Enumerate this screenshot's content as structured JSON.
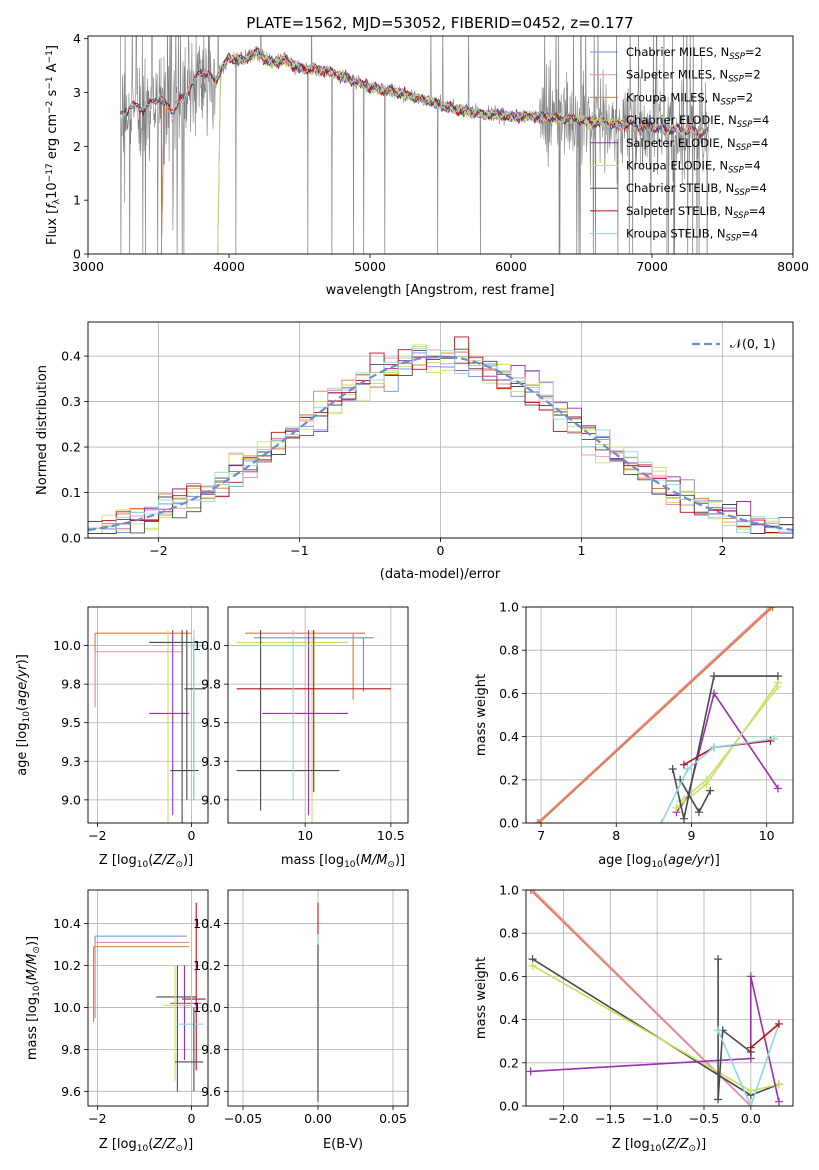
{
  "title": "PLATE=1562, MJD=53052, FIBERID=0452, z=0.177",
  "colors": {
    "chabrier_miles": "#6f8fe0",
    "salpeter_miles": "#e88fb0",
    "kroupa_miles": "#e07b2e",
    "chabrier_elodie": "#c8e05a",
    "salpeter_elodie": "#9b2fae",
    "kroupa_elodie": "#c3e37a",
    "chabrier_stelib": "#4a4a4a",
    "salpeter_stelib": "#b5121b",
    "kroupa_stelib": "#8fd9e0",
    "data": "#7f7f7f",
    "gaussian": "#6a8fd0"
  },
  "legend_spectrum": [
    {
      "text": "Chabrier MILES, N",
      "sub": "SSP",
      "tail": "=2",
      "color": "#6f8fe0"
    },
    {
      "text": "Salpeter MILES, N",
      "sub": "SSP",
      "tail": "=2",
      "color": "#e88fb0"
    },
    {
      "text": "Kroupa MILES, N",
      "sub": "SSP",
      "tail": "=2",
      "color": "#e07b2e"
    },
    {
      "text": "Chabrier ELODIE, N",
      "sub": "SSP",
      "tail": "=4",
      "color": "#c8e05a"
    },
    {
      "text": "Salpeter ELODIE, N",
      "sub": "SSP",
      "tail": "=4",
      "color": "#9b2fae"
    },
    {
      "text": "Kroupa ELODIE, N",
      "sub": "SSP",
      "tail": "=4",
      "color": "#c3e37a"
    },
    {
      "text": "Chabrier STELIB, N",
      "sub": "SSP",
      "tail": "=4",
      "color": "#4a4a4a"
    },
    {
      "text": "Salpeter STELIB, N",
      "sub": "SSP",
      "tail": "=4",
      "color": "#b5121b"
    },
    {
      "text": "Kroupa STELIB, N",
      "sub": "SSP",
      "tail": "=4",
      "color": "#8fd9e0"
    }
  ],
  "legend_hist": {
    "label": "𝒩(0, 1)"
  },
  "chart_data": [
    {
      "id": "spectrum",
      "type": "line",
      "title": "PLATE=1562, MJD=53052, FIBERID=0452, z=0.177",
      "xlabel": "wavelength [Angstrom, rest frame]",
      "ylabel_parts": [
        "Flux [",
        "f",
        "λ",
        "10",
        "−17",
        " erg cm",
        "−2",
        " s",
        "−1",
        " A",
        "−1",
        "]"
      ],
      "xlim": [
        3000,
        8000
      ],
      "ylim": [
        0,
        4.05
      ],
      "xticks": [
        3000,
        4000,
        5000,
        6000,
        7000,
        8000
      ],
      "yticks": [
        0,
        1,
        2,
        3,
        4
      ],
      "grid": false,
      "legend_position": "upper-right",
      "model_continuum": {
        "x": [
          3230,
          3300,
          3400,
          3500,
          3600,
          3700,
          3800,
          3900,
          3950,
          4000,
          4100,
          4200,
          4300,
          4400,
          4500,
          4700,
          4800,
          5000,
          5200,
          5400,
          5600,
          5800,
          6000,
          6200,
          6400,
          6600,
          6800,
          7000,
          7200,
          7400
        ],
        "y": [
          2.55,
          2.75,
          2.7,
          2.9,
          2.65,
          3.0,
          3.4,
          3.2,
          3.45,
          3.65,
          3.6,
          3.75,
          3.55,
          3.6,
          3.45,
          3.4,
          3.3,
          3.1,
          3.0,
          2.85,
          2.7,
          2.6,
          2.55,
          2.55,
          2.5,
          2.45,
          2.4,
          2.35,
          2.3,
          2.25
        ]
      },
      "data_range": [
        3230,
        7520
      ]
    },
    {
      "id": "residual_hist",
      "type": "step_histogram",
      "xlabel": "(data-model)/error",
      "ylabel": "Normed distribution",
      "xlim": [
        -2.5,
        2.5
      ],
      "ylim": [
        0,
        0.475
      ],
      "xticks": [
        -2,
        -1,
        0,
        1,
        2
      ],
      "yticks": [
        0.0,
        0.1,
        0.2,
        0.3,
        0.4
      ],
      "grid": true,
      "legend_position": "upper-right",
      "gaussian": {
        "mean": 0,
        "sigma": 1,
        "style": "dashed"
      }
    },
    {
      "id": "age_vs_Z",
      "type": "errorbar",
      "xlabel_parts": [
        "Z [log",
        "10",
        "(",
        "Z/Z",
        "⊙",
        ")]"
      ],
      "ylabel_parts": [
        "age  [log",
        "10",
        "(",
        "age/yr",
        ")]"
      ],
      "xlim": [
        -2.2,
        0.35
      ],
      "ylim": [
        8.85,
        10.25
      ],
      "xticks": [
        -2,
        0
      ],
      "yticks": [
        9.0,
        9.25,
        9.5,
        9.75,
        10.0
      ],
      "grid": true,
      "points": [
        {
          "m": "kroupa_miles",
          "x": -2.05,
          "y": 10.08,
          "xlo": -2.05,
          "xhi": 0.0,
          "ylo": 9.6,
          "yhi": 10.08
        },
        {
          "m": "salpeter_miles",
          "x": -2.05,
          "y": 9.96,
          "xlo": -2.05,
          "xhi": -0.2,
          "ylo": 9.6,
          "yhi": 9.97
        },
        {
          "m": "chabrier_elodie",
          "x": -0.5,
          "y": 10.02,
          "xlo": -0.8,
          "xhi": 0.1,
          "ylo": 8.85,
          "yhi": 10.1
        },
        {
          "m": "chabrier_stelib",
          "x": -0.1,
          "y": 10.02,
          "xlo": -0.9,
          "xhi": 0.25,
          "ylo": 9.0,
          "yhi": 10.1
        },
        {
          "m": "salpeter_elodie",
          "x": -0.4,
          "y": 9.56,
          "xlo": -0.9,
          "xhi": -0.05,
          "ylo": 8.9,
          "yhi": 10.1
        },
        {
          "m": "chabrier_stelib",
          "x": 0.05,
          "y": 9.72,
          "xlo": -0.15,
          "xhi": 0.3,
          "ylo": 9.0,
          "yhi": 10.05
        },
        {
          "m": "chabrier_stelib",
          "x": -0.2,
          "y": 9.19,
          "xlo": -0.45,
          "xhi": 0.15,
          "ylo": 8.85,
          "yhi": 10.1
        },
        {
          "m": "kroupa_stelib",
          "x": 0.05,
          "y": 10.0,
          "xlo": -0.1,
          "xhi": 0.25,
          "ylo": 9.0,
          "yhi": 10.1
        }
      ]
    },
    {
      "id": "age_vs_mass",
      "type": "errorbar",
      "xlabel_parts": [
        "mass [log",
        "10",
        "(",
        "M/M",
        "⊙",
        ")]"
      ],
      "ylabel_parts": [],
      "xlim": [
        9.55,
        10.6
      ],
      "ylim": [
        8.85,
        10.25
      ],
      "xticks": [
        10.0,
        10.5
      ],
      "yticks": [
        9.0,
        9.25,
        9.5,
        9.75,
        10.0
      ],
      "grid": true,
      "points": [
        {
          "m": "kroupa_miles",
          "x": 10.28,
          "y": 10.08,
          "xlo": 9.65,
          "xhi": 10.35,
          "ylo": 9.65,
          "yhi": 10.08
        },
        {
          "m": "chabrier_miles",
          "x": 10.34,
          "y": 10.05,
          "xlo": 9.7,
          "xhi": 10.4,
          "ylo": 9.7,
          "yhi": 10.05
        },
        {
          "m": "chabrier_elodie",
          "x": 10.04,
          "y": 10.02,
          "xlo": 9.6,
          "xhi": 10.25,
          "ylo": 8.85,
          "yhi": 10.1
        },
        {
          "m": "salpeter_elodie",
          "x": 10.02,
          "y": 9.56,
          "xlo": 9.75,
          "xhi": 10.25,
          "ylo": 8.9,
          "yhi": 10.1
        },
        {
          "m": "salpeter_stelib",
          "x": 10.05,
          "y": 9.72,
          "xlo": 9.6,
          "xhi": 10.5,
          "ylo": 9.05,
          "yhi": 10.1
        },
        {
          "m": "chabrier_stelib",
          "x": 9.74,
          "y": 9.19,
          "xlo": 9.6,
          "xhi": 10.2,
          "ylo": 8.93,
          "yhi": 10.1
        },
        {
          "m": "kroupa_stelib",
          "x": 9.93,
          "y": 10.0,
          "xlo": 9.6,
          "xhi": 10.05,
          "ylo": 9.0,
          "yhi": 10.1
        }
      ]
    },
    {
      "id": "weight_vs_age",
      "type": "line",
      "xlabel_parts": [
        "age  [log",
        "10",
        "(",
        "age/yr",
        ")]"
      ],
      "ylabel": "mass weight",
      "xlim": [
        6.8,
        10.35
      ],
      "ylim": [
        0,
        1.0
      ],
      "xticks": [
        7,
        8,
        9,
        10
      ],
      "yticks": [
        0.0,
        0.2,
        0.4,
        0.6,
        0.8,
        1.0
      ],
      "grid": true,
      "series": [
        {
          "m": "salpeter_miles",
          "x": [
            6.95,
            10.05
          ],
          "y": [
            0.0,
            1.0
          ]
        },
        {
          "m": "kroupa_miles",
          "x": [
            6.97,
            10.08
          ],
          "y": [
            0.0,
            1.0
          ]
        },
        {
          "m": "salpeter_elodie",
          "x": [
            8.8,
            8.95,
            9.3,
            10.15
          ],
          "y": [
            0.05,
            0.12,
            0.6,
            0.16
          ]
        },
        {
          "m": "chabrier_elodie",
          "x": [
            8.8,
            9.2,
            10.15
          ],
          "y": [
            0.07,
            0.18,
            0.65
          ]
        },
        {
          "m": "kroupa_elodie",
          "x": [
            8.85,
            9.2,
            10.15
          ],
          "y": [
            0.1,
            0.2,
            0.63
          ]
        },
        {
          "m": "chabrier_stelib",
          "x": [
            8.75,
            8.9,
            9.3,
            10.15
          ],
          "y": [
            0.25,
            0.02,
            0.68,
            0.68
          ]
        },
        {
          "m": "chabrier_stelib",
          "x": [
            8.85,
            9.1,
            9.25
          ],
          "y": [
            0.2,
            0.05,
            0.15
          ]
        },
        {
          "m": "salpeter_stelib",
          "x": [
            8.9,
            9.3,
            10.05
          ],
          "y": [
            0.27,
            0.35,
            0.38
          ]
        },
        {
          "m": "kroupa_stelib",
          "x": [
            8.6,
            8.95,
            9.3,
            10.1
          ],
          "y": [
            0.0,
            0.25,
            0.35,
            0.39
          ]
        }
      ]
    },
    {
      "id": "mass_vs_Z",
      "type": "errorbar",
      "xlabel_parts": [
        "Z [log",
        "10",
        "(",
        "Z/Z",
        "⊙",
        ")]"
      ],
      "ylabel_parts": [
        "mass [log",
        "10",
        "(",
        "M/M",
        "⊙",
        ")]"
      ],
      "xlim": [
        -2.2,
        0.35
      ],
      "ylim": [
        9.53,
        10.56
      ],
      "xticks": [
        -2,
        0
      ],
      "yticks": [
        9.6,
        9.8,
        10.0,
        10.2,
        10.4
      ],
      "grid": true,
      "points": [
        {
          "m": "chabrier_miles",
          "x": -2.05,
          "y": 10.34,
          "xlo": -2.05,
          "xhi": -0.1,
          "ylo": 9.95,
          "yhi": 10.34
        },
        {
          "m": "salpeter_miles",
          "x": -2.05,
          "y": 10.31,
          "xlo": -2.05,
          "xhi": -0.05,
          "ylo": 9.95,
          "yhi": 10.31
        },
        {
          "m": "kroupa_miles",
          "x": -2.08,
          "y": 10.29,
          "xlo": -2.08,
          "xhi": -0.05,
          "ylo": 9.93,
          "yhi": 10.29
        },
        {
          "m": "chabrier_stelib",
          "x": -0.3,
          "y": 10.05,
          "xlo": -0.75,
          "xhi": 0.1,
          "ylo": 9.6,
          "yhi": 10.2
        },
        {
          "m": "salpeter_stelib",
          "x": 0.1,
          "y": 10.04,
          "xlo": -0.2,
          "xhi": 0.3,
          "ylo": 9.7,
          "yhi": 10.5
        },
        {
          "m": "salpeter_elodie",
          "x": -0.15,
          "y": 10.02,
          "xlo": -0.45,
          "xhi": 0.2,
          "ylo": 9.75,
          "yhi": 10.2
        },
        {
          "m": "chabrier_elodie",
          "x": -0.35,
          "y": 10.01,
          "xlo": -0.6,
          "xhi": 0.0,
          "ylo": 9.65,
          "yhi": 10.2
        },
        {
          "m": "kroupa_stelib",
          "x": 0.0,
          "y": 9.92,
          "xlo": -0.3,
          "xhi": 0.25,
          "ylo": 9.7,
          "yhi": 10.1
        },
        {
          "m": "chabrier_stelib",
          "x": 0.05,
          "y": 9.74,
          "xlo": -0.35,
          "xhi": 0.25,
          "ylo": 9.6,
          "yhi": 10.0
        }
      ]
    },
    {
      "id": "mass_vs_ebv",
      "type": "errorbar",
      "xlabel": "E(B-V)",
      "ylabel_parts": [],
      "xlim": [
        -0.06,
        0.06
      ],
      "ylim": [
        9.53,
        10.56
      ],
      "xticks": [
        -0.05,
        0.0,
        0.05
      ],
      "xticklabels": [
        "−0.05",
        "0.00",
        "0.05"
      ],
      "yticks": [
        9.6,
        9.8,
        10.0,
        10.2,
        10.4
      ],
      "grid": true,
      "points": [
        {
          "m": "salpeter_stelib",
          "x": 0.0,
          "y": 10.04,
          "xlo": 0.0,
          "xhi": 0.0,
          "ylo": 9.6,
          "yhi": 10.5
        },
        {
          "m": "kroupa_stelib",
          "x": 0.0,
          "y": 10.0,
          "xlo": 0.0,
          "xhi": 0.0,
          "ylo": 9.7,
          "yhi": 10.35
        },
        {
          "m": "chabrier_stelib",
          "x": 0.0,
          "y": 9.9,
          "xlo": 0.0,
          "xhi": 0.0,
          "ylo": 9.55,
          "yhi": 10.3
        }
      ]
    },
    {
      "id": "weight_vs_Z",
      "type": "line",
      "xlabel_parts": [
        "Z [log",
        "10",
        "(",
        "Z/Z",
        "⊙",
        ")]"
      ],
      "ylabel": "mass weight",
      "xlim": [
        -2.4,
        0.45
      ],
      "ylim": [
        0,
        1.0
      ],
      "xticks": [
        -2.0,
        -1.5,
        -1.0,
        -0.5,
        0.0
      ],
      "xticklabels": [
        "−2.0",
        "−1.5",
        "−1.0",
        "−0.5",
        "0.0"
      ],
      "yticks": [
        0.0,
        0.2,
        0.4,
        0.6,
        0.8,
        1.0
      ],
      "grid": true,
      "series": [
        {
          "m": "kroupa_miles",
          "x": [
            -2.35,
            0.0
          ],
          "y": [
            1.0,
            0.0
          ]
        },
        {
          "m": "salpeter_miles",
          "x": [
            -2.33,
            0.0
          ],
          "y": [
            1.0,
            0.0
          ]
        },
        {
          "m": "chabrier_stelib",
          "x": [
            -2.33,
            0.0,
            0.3
          ],
          "y": [
            0.68,
            0.05,
            0.1
          ]
        },
        {
          "m": "chabrier_elodie",
          "x": [
            -2.33,
            0.0,
            0.3
          ],
          "y": [
            0.65,
            0.07,
            0.1
          ]
        },
        {
          "m": "salpeter_elodie",
          "x": [
            -2.35,
            0.0,
            0.0,
            0.3
          ],
          "y": [
            0.16,
            0.22,
            0.6,
            0.02
          ]
        },
        {
          "m": "chabrier_stelib",
          "x": [
            -0.35,
            -0.35,
            -0.3,
            0.0
          ],
          "y": [
            0.68,
            0.03,
            0.35,
            0.25
          ]
        },
        {
          "m": "kroupa_stelib",
          "x": [
            -0.35,
            0.0,
            0.3
          ],
          "y": [
            0.35,
            0.0,
            0.38
          ]
        },
        {
          "m": "salpeter_stelib",
          "x": [
            0.0,
            0.3
          ],
          "y": [
            0.27,
            0.38
          ]
        }
      ]
    }
  ]
}
